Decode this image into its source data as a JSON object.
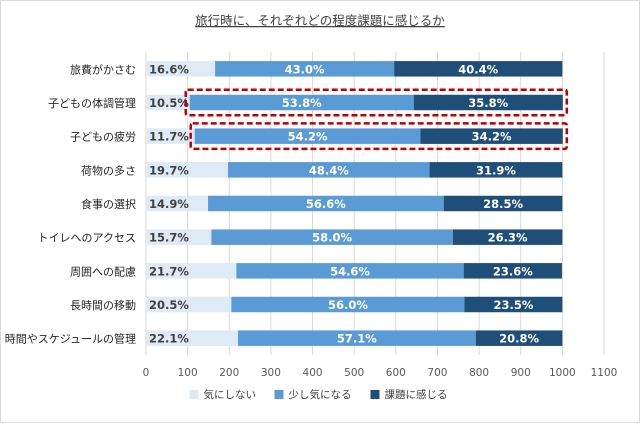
{
  "chart_data": {
    "type": "bar",
    "orientation": "horizontal",
    "stacked": true,
    "title": "旅行時に、それぞれどの程度課題に感じるか",
    "categories": [
      "旅費がかさむ",
      "子どもの体調管理",
      "子どもの疲労",
      "荷物の多さ",
      "食事の選択",
      "トイレへのアクセス",
      "周囲への配慮",
      "長時間の移動",
      "時間やスケジュールの管理"
    ],
    "series": [
      {
        "name": "気にしない",
        "color": "#deebf7",
        "values": [
          16.6,
          10.5,
          11.7,
          19.7,
          14.9,
          15.7,
          21.7,
          20.5,
          22.1
        ]
      },
      {
        "name": "少し気になる",
        "color": "#5b9bd5",
        "values": [
          43.0,
          53.8,
          54.2,
          48.4,
          56.6,
          58.0,
          54.6,
          56.0,
          57.1
        ]
      },
      {
        "name": "課題に感じる",
        "color": "#1f4e79",
        "values": [
          40.4,
          35.8,
          34.2,
          31.9,
          28.5,
          26.3,
          23.6,
          23.5,
          20.8
        ]
      }
    ],
    "data_labels": [
      [
        "16.6%",
        "43.0%",
        "40.4%"
      ],
      [
        "10.5%",
        "53.8%",
        "35.8%"
      ],
      [
        "11.7%",
        "54.2%",
        "34.2%"
      ],
      [
        "19.7%",
        "48.4%",
        "31.9%"
      ],
      [
        "14.9%",
        "56.6%",
        "28.5%"
      ],
      [
        "15.7%",
        "58.0%",
        "26.3%"
      ],
      [
        "21.7%",
        "54.6%",
        "23.6%"
      ],
      [
        "20.5%",
        "56.0%",
        "23.5%"
      ],
      [
        "22.1%",
        "57.1%",
        "20.8%"
      ]
    ],
    "x_ticks": [
      0,
      100,
      200,
      300,
      400,
      500,
      600,
      700,
      800,
      900,
      1000,
      1100
    ],
    "xlim": [
      0,
      1100
    ],
    "highlighted_categories": [
      "子どもの体調管理",
      "子どもの疲労"
    ],
    "highlight_color": "#c00000",
    "legend_position": "bottom",
    "grid": true
  }
}
